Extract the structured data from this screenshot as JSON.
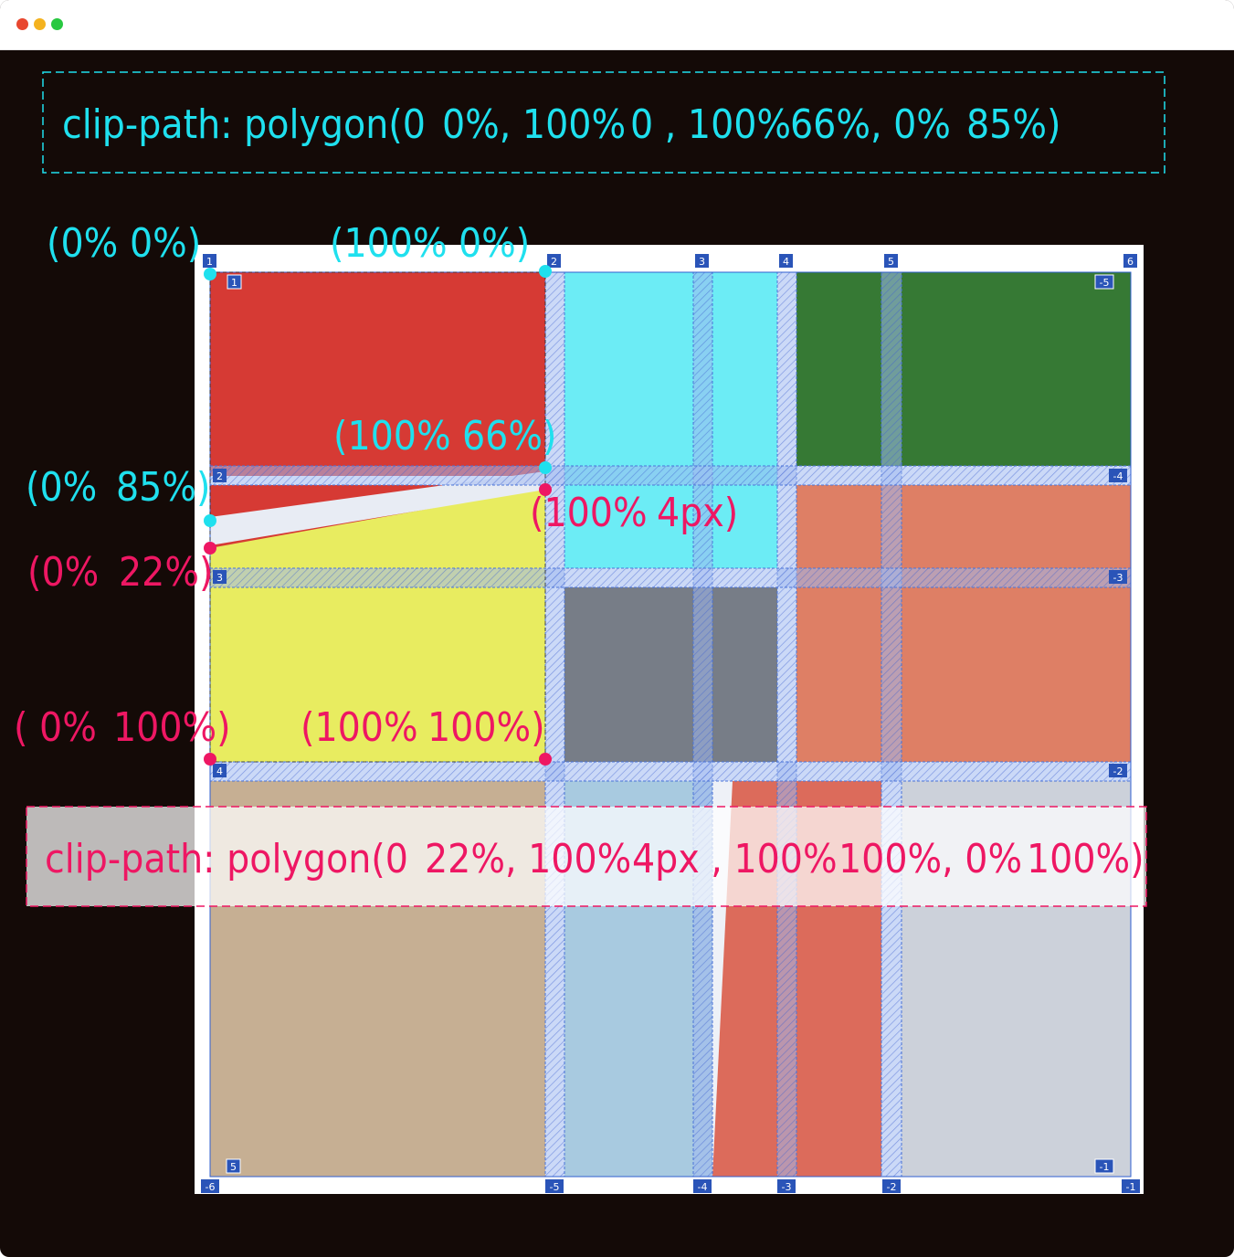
{
  "window": {
    "controls": [
      {
        "name": "close",
        "color": "#e8472f"
      },
      {
        "name": "minimize",
        "color": "#f4b21f"
      },
      {
        "name": "maximize",
        "color": "#28c840"
      }
    ]
  },
  "colors": {
    "cyan": "#1fe0ee",
    "pink": "#ee1763",
    "red": "#d63a34",
    "yellow": "#e8ec60",
    "lightcyan": "#6cecf5",
    "darkgreen": "#367934",
    "salmon": "#de7f65",
    "gray": "#777d87",
    "tan": "#c6af93",
    "lightblue": "#a8cae0",
    "coral": "#dc6b5b",
    "lightgray": "#ccd1da",
    "grid_line": "#2f5fd1",
    "badge": "#2a54b8"
  },
  "top_box": {
    "parts": [
      {
        "text": "clip-path: polygon(0"
      },
      {
        "text": "0%, 100%"
      },
      {
        "text": "0 , 100%"
      },
      {
        "text": "66%, 0%"
      },
      {
        "text": "85%)"
      }
    ]
  },
  "bottom_box": {
    "parts": [
      {
        "text": "clip-path: polygon(0"
      },
      {
        "text": "22%, 100%"
      },
      {
        "text": "4px , 100%"
      },
      {
        "text": "100%, 0%"
      },
      {
        "text": "100%)"
      }
    ]
  },
  "cyan_labels": [
    {
      "id": "p0",
      "parts": [
        "(0%",
        "0%)"
      ]
    },
    {
      "id": "p1",
      "parts": [
        "(100%",
        "0%)"
      ]
    },
    {
      "id": "p2",
      "parts": [
        "(100%",
        "66%)"
      ]
    },
    {
      "id": "p3",
      "parts": [
        "(0%",
        "85%)"
      ]
    }
  ],
  "pink_labels": [
    {
      "id": "q0",
      "parts": [
        "(100%",
        "4px)"
      ]
    },
    {
      "id": "q1",
      "parts": [
        "(0%",
        "22%)"
      ]
    },
    {
      "id": "q2",
      "parts": [
        "( 0%",
        "100%)"
      ]
    },
    {
      "id": "q3",
      "parts": [
        "(100%",
        "100%)"
      ]
    }
  ],
  "grid_badges": {
    "columns_top": [
      "1",
      "2",
      "3",
      "4",
      "5",
      "6"
    ],
    "columns_bottom": [
      "-6",
      "-5",
      "-4",
      "-3",
      "-2",
      "-1"
    ],
    "rows_left": [
      "1",
      "2",
      "3",
      "4",
      "5"
    ],
    "rows_right": [
      "-5",
      "-4",
      "-3",
      "-2",
      "-1"
    ]
  }
}
